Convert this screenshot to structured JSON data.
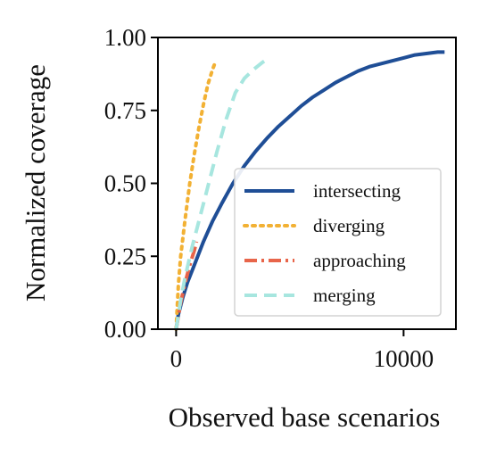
{
  "chart_data": {
    "type": "line",
    "title": "",
    "xlabel": "Observed base scenarios",
    "ylabel": "Normalized coverage",
    "xlim": [
      -800,
      12300
    ],
    "ylim": [
      0,
      1
    ],
    "x_ticks": [
      {
        "value": 0,
        "label": "0"
      },
      {
        "value": 10000,
        "label": "10000"
      }
    ],
    "y_ticks": [
      {
        "value": 0,
        "label": "0.00"
      },
      {
        "value": 0.25,
        "label": "0.25"
      },
      {
        "value": 0.5,
        "label": "0.50"
      },
      {
        "value": 0.75,
        "label": "0.75"
      },
      {
        "value": 1,
        "label": "1.00"
      }
    ],
    "grid": false,
    "legend_position": "center-right",
    "series": [
      {
        "name": "intersecting",
        "color": "#1f4e96",
        "dash": "solid",
        "x": [
          0,
          100,
          300,
          500,
          800,
          1200,
          1600,
          2000,
          2500,
          3000,
          3500,
          4000,
          4500,
          5000,
          5500,
          6000,
          6500,
          7000,
          7500,
          8000,
          8500,
          9000,
          9500,
          10000,
          10500,
          11000,
          11500,
          11800
        ],
        "y": [
          0.0,
          0.05,
          0.11,
          0.16,
          0.22,
          0.3,
          0.37,
          0.43,
          0.5,
          0.56,
          0.61,
          0.655,
          0.695,
          0.73,
          0.765,
          0.795,
          0.82,
          0.845,
          0.865,
          0.885,
          0.9,
          0.91,
          0.92,
          0.93,
          0.94,
          0.945,
          0.95,
          0.95
        ]
      },
      {
        "name": "diverging",
        "color": "#f2b134",
        "dash": "dotted",
        "x": [
          0,
          100,
          200,
          400,
          600,
          800,
          1000,
          1200,
          1400,
          1600,
          1700
        ],
        "y": [
          0.0,
          0.15,
          0.25,
          0.38,
          0.5,
          0.6,
          0.69,
          0.77,
          0.84,
          0.89,
          0.91
        ]
      },
      {
        "name": "approaching",
        "color": "#e8654a",
        "dash": "dashdot",
        "x": [
          0,
          200,
          400,
          600,
          800,
          900
        ],
        "y": [
          0.0,
          0.09,
          0.16,
          0.22,
          0.27,
          0.3
        ]
      },
      {
        "name": "merging",
        "color": "#a7e6df",
        "dash": "dashed",
        "x": [
          0,
          200,
          400,
          700,
          1000,
          1400,
          1800,
          2200,
          2600,
          3000,
          3400,
          3800,
          4000
        ],
        "y": [
          0.0,
          0.1,
          0.18,
          0.28,
          0.37,
          0.49,
          0.61,
          0.72,
          0.81,
          0.86,
          0.89,
          0.915,
          0.925
        ]
      }
    ]
  }
}
